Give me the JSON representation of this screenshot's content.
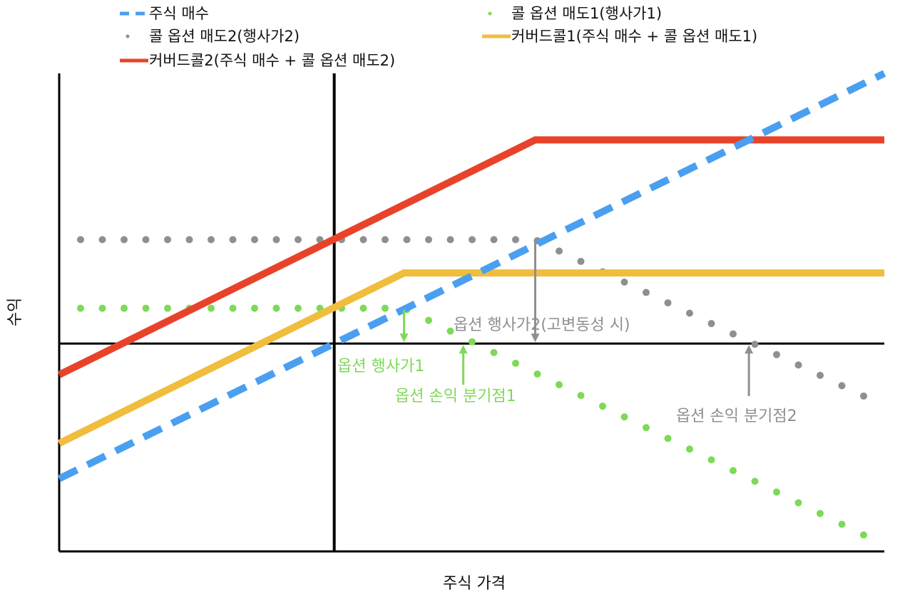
{
  "chart_data": {
    "type": "line",
    "title": "",
    "xlabel": "주식 가격",
    "ylabel": "수익",
    "x_range": [
      -13,
      26
    ],
    "y_range": [
      -10,
      13
    ],
    "grid": false,
    "legend_placement": "top",
    "colors": {
      "stock": "#4a9ff0",
      "call1": "#7ed957",
      "call2": "#8f8f8f",
      "covered1": "#f0bd3c",
      "covered2": "#e8432a",
      "axis": "#000000"
    },
    "series": [
      {
        "key": "stock",
        "name": "주식 매수",
        "style": "dashed",
        "points": [
          [
            -13,
            -6.5
          ],
          [
            26,
            13
          ]
        ]
      },
      {
        "key": "call2",
        "name": "콜 옵션 매도2(행사가2)",
        "style": "dotted-gray",
        "points": [
          [
            -13,
            5
          ],
          [
            9.5,
            5
          ],
          [
            26,
            -3
          ]
        ]
      },
      {
        "key": "covered2",
        "name": "커버드콜2(주식 매수 + 콜 옵션 매도2)",
        "style": "solid",
        "points": [
          [
            -13,
            -1.5
          ],
          [
            9.5,
            9.8
          ],
          [
            26,
            9.8
          ]
        ]
      },
      {
        "key": "call1",
        "name": "콜 옵션 매도1(행사가1)",
        "style": "dotted-green",
        "points": [
          [
            -13,
            1.7
          ],
          [
            3.3,
            1.7
          ],
          [
            26,
            -9.7
          ]
        ]
      },
      {
        "key": "covered1",
        "name": "커버드콜1(주식 매수 + 콜 옵션 매도1)",
        "style": "solid",
        "points": [
          [
            -13,
            -4.8
          ],
          [
            3.3,
            3.4
          ],
          [
            26,
            3.4
          ]
        ]
      }
    ],
    "annotations": [
      {
        "key": "strike1",
        "text": "옵션 행사가1",
        "color": "#7ed957",
        "x": 3.3
      },
      {
        "key": "be1",
        "text": "옵션 손익 분기점1",
        "color": "#7ed957",
        "x": 6.1
      },
      {
        "key": "strike2",
        "text": "옵션 행사가2(고변동성 시)",
        "color": "#8f8f8f",
        "x": 9.5
      },
      {
        "key": "be2",
        "text": "옵션 손익 분기점2",
        "color": "#8f8f8f",
        "x": 19.6
      }
    ]
  }
}
